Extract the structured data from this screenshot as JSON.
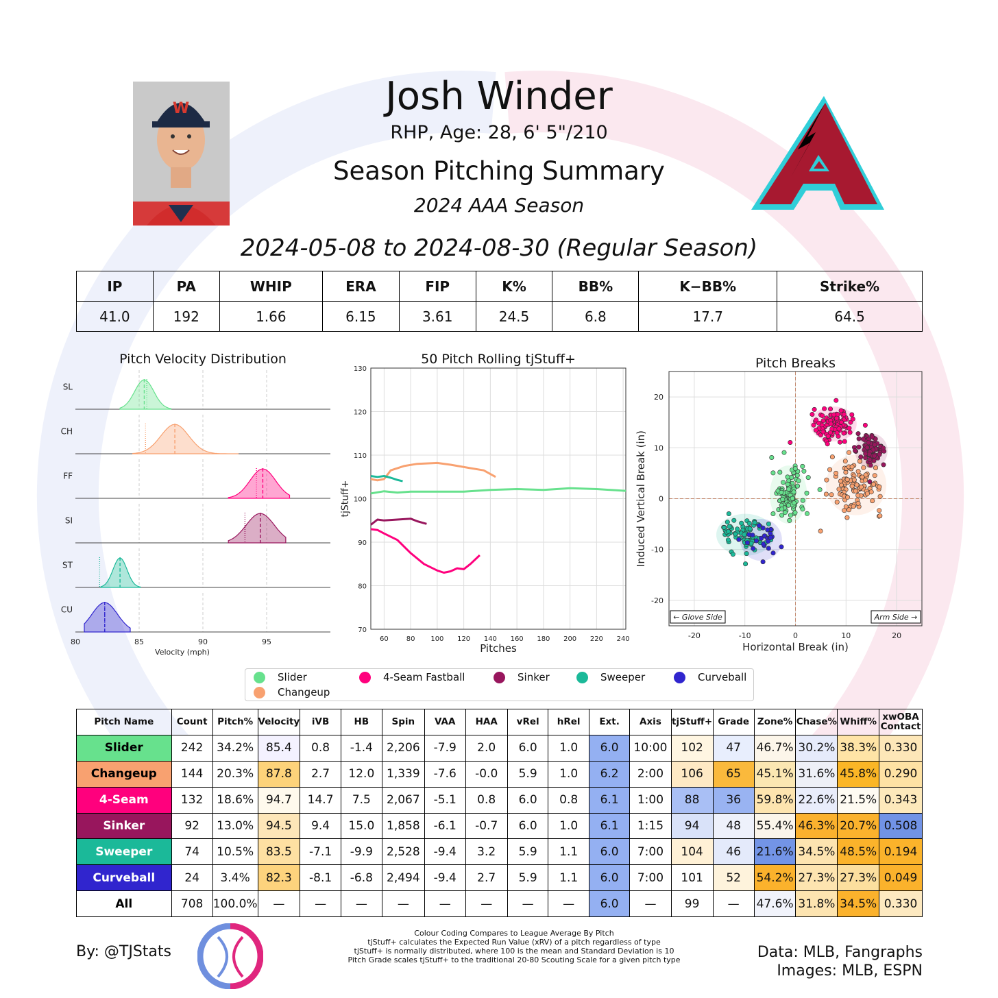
{
  "header": {
    "player_name": "Josh Winder",
    "bio": "RHP, Age: 28, 6' 5\"/210",
    "title": "Season Pitching Summary",
    "season": "2024 AAA Season",
    "date_range": "2024-05-08 to 2024-08-30 (Regular Season)"
  },
  "stat_summary": {
    "headers": [
      "IP",
      "PA",
      "WHIP",
      "ERA",
      "FIP",
      "K%",
      "BB%",
      "K−BB%",
      "Strike%"
    ],
    "values": [
      "41.0",
      "192",
      "1.66",
      "6.15",
      "3.61",
      "24.5",
      "6.8",
      "17.7",
      "64.5"
    ]
  },
  "colors": {
    "Slider": "#67e18d",
    "Changeup": "#f8a170",
    "4-Seam": "#ff007d",
    "Sinker": "#98165d",
    "Sweeper": "#1bb999",
    "Curveball": "#3025ce"
  },
  "legend": {
    "items": [
      {
        "label": "Slider",
        "color": "#67e18d"
      },
      {
        "label": "4-Seam Fastball",
        "color": "#ff007d"
      },
      {
        "label": "Sinker",
        "color": "#98165d"
      },
      {
        "label": "Sweeper",
        "color": "#1bb999"
      },
      {
        "label": "Curveball",
        "color": "#3025ce"
      },
      {
        "label": "Changeup",
        "color": "#f8a170"
      }
    ]
  },
  "chart_data": [
    {
      "type": "area",
      "title": "Pitch Velocity Distribution",
      "xlabel": "Velocity (mph)",
      "xlim": [
        80,
        100
      ],
      "xticks": [
        80,
        85,
        90,
        95
      ],
      "series": [
        {
          "name": "SL",
          "color": "#67e18d",
          "mean": 85.4,
          "league_avg": 85.6,
          "sd": 0.75,
          "range": [
            83.5,
            87.5
          ]
        },
        {
          "name": "CH",
          "color": "#f8a170",
          "mean": 87.8,
          "league_avg": 85.5,
          "sd": 1.1,
          "range": [
            84.5,
            92.8
          ]
        },
        {
          "name": "FF",
          "color": "#ff007d",
          "mean": 94.7,
          "league_avg": 94.2,
          "sd": 1.0,
          "range": [
            92.0,
            96.8
          ]
        },
        {
          "name": "SI",
          "color": "#98165d",
          "mean": 94.5,
          "league_avg": 93.3,
          "sd": 1.1,
          "range": [
            92.0,
            96.5
          ]
        },
        {
          "name": "ST",
          "color": "#1bb999",
          "mean": 83.5,
          "league_avg": 81.9,
          "sd": 0.55,
          "range": [
            82.0,
            85.1
          ]
        },
        {
          "name": "CU",
          "color": "#3025ce",
          "mean": 82.3,
          "league_avg": 82.3,
          "sd": 1.0,
          "range": [
            80.7,
            84.3
          ]
        }
      ]
    },
    {
      "type": "line",
      "title": "50 Pitch Rolling tjStuff+",
      "xlabel": "Pitches",
      "ylabel": "tjStuff+",
      "xlim": [
        50,
        242
      ],
      "ylim": [
        70,
        130
      ],
      "xticks": [
        60,
        80,
        100,
        120,
        140,
        160,
        180,
        200,
        220,
        240
      ],
      "yticks": [
        70,
        80,
        90,
        100,
        110,
        120,
        130
      ],
      "series": [
        {
          "name": "Slider",
          "color": "#67e18d",
          "x": [
            50,
            60,
            70,
            80,
            100,
            120,
            140,
            160,
            180,
            200,
            220,
            242
          ],
          "y": [
            101.2,
            101.7,
            101.4,
            101.6,
            101.6,
            101.6,
            102.0,
            102.2,
            102.0,
            102.4,
            102.2,
            101.8
          ]
        },
        {
          "name": "Changeup",
          "color": "#f8a170",
          "x": [
            50,
            55,
            60,
            65,
            75,
            85,
            100,
            110,
            125,
            135,
            144
          ],
          "y": [
            104.5,
            104.2,
            104.5,
            106.5,
            107.5,
            108.0,
            108.2,
            107.8,
            107.0,
            106.5,
            105.0
          ]
        },
        {
          "name": "Sweeper",
          "color": "#1bb999",
          "x": [
            50,
            55,
            60,
            65,
            70,
            74
          ],
          "y": [
            105.2,
            105.0,
            105.2,
            104.8,
            104.3,
            104.0
          ]
        },
        {
          "name": "Sinker",
          "color": "#98165d",
          "x": [
            50,
            55,
            60,
            70,
            80,
            85,
            92
          ],
          "y": [
            94.0,
            95.2,
            95.0,
            95.2,
            95.4,
            94.8,
            94.2
          ]
        },
        {
          "name": "4-Seam",
          "color": "#ff007d",
          "x": [
            50,
            55,
            60,
            70,
            80,
            90,
            100,
            105,
            110,
            115,
            120,
            125,
            132
          ],
          "y": [
            93.0,
            92.8,
            92.0,
            90.5,
            87.5,
            85.0,
            83.5,
            83.0,
            83.3,
            84.0,
            83.8,
            85.0,
            87.0
          ]
        }
      ]
    },
    {
      "type": "scatter",
      "title": "Pitch Breaks",
      "xlabel": "Horizontal Break (in)",
      "ylabel": "Induced Vertical Break (in)",
      "xlim": [
        -25,
        25
      ],
      "ylim": [
        -25,
        25
      ],
      "xticks": [
        -20,
        -10,
        0,
        10,
        20
      ],
      "yticks": [
        -20,
        -10,
        0,
        10,
        20
      ],
      "annotations": [
        "← Glove Side",
        "Arm Side →"
      ],
      "clusters": [
        {
          "name": "Slider",
          "color": "#67e18d",
          "center": [
            -1.4,
            0.8
          ],
          "spread": [
            1.6,
            2.5
          ],
          "n": 242
        },
        {
          "name": "Changeup",
          "color": "#f8a170",
          "center": [
            12.0,
            2.7
          ],
          "spread": [
            2.6,
            2.6
          ],
          "n": 144
        },
        {
          "name": "4-Seam",
          "color": "#ff007d",
          "center": [
            7.5,
            14.7
          ],
          "spread": [
            2.0,
            1.5
          ],
          "n": 132
        },
        {
          "name": "Sinker",
          "color": "#98165d",
          "center": [
            15.0,
            9.4
          ],
          "spread": [
            1.4,
            1.5
          ],
          "n": 92
        },
        {
          "name": "Sweeper",
          "color": "#1bb999",
          "center": [
            -9.9,
            -7.1
          ],
          "spread": [
            2.5,
            1.8
          ],
          "n": 74
        },
        {
          "name": "Curveball",
          "color": "#3025ce",
          "center": [
            -6.8,
            -8.1
          ],
          "spread": [
            1.8,
            1.8
          ],
          "n": 24
        }
      ]
    }
  ],
  "pitch_table": {
    "headers": [
      "Pitch Name",
      "Count",
      "Pitch%",
      "Velocity",
      "iVB",
      "HB",
      "Spin",
      "VAA",
      "HAA",
      "vRel",
      "hRel",
      "Ext.",
      "Axis",
      "tjStuff+",
      "Grade",
      "Zone%",
      "Chase%",
      "Whiff%",
      "xwOBA\nContact"
    ],
    "rows": [
      {
        "name": "Slider",
        "bg": "#67e18d",
        "fg": "#000",
        "cells": [
          "242",
          "34.2%",
          "85.4",
          "0.8",
          "-1.4",
          "2,206",
          "-7.9",
          "2.0",
          "6.0",
          "1.0",
          "6.0",
          "10:00",
          "102",
          "47",
          "46.7%",
          "30.2%",
          "38.3%",
          "0.330"
        ],
        "shade": [
          "#ffffff",
          "#ffffff",
          "#f4f2ff",
          "#ffffff",
          "#ffffff",
          "#ffffff",
          "#ffffff",
          "#ffffff",
          "#ffffff",
          "#ffffff",
          "#94b0f2",
          "#ffffff",
          "#fff6e2",
          "#e8eefd",
          "#fcf6ea",
          "#e6ebfb",
          "#ffe4a6",
          "#fde7b8"
        ]
      },
      {
        "name": "Changeup",
        "bg": "#f8a170",
        "fg": "#000",
        "cells": [
          "144",
          "20.3%",
          "87.8",
          "2.7",
          "12.0",
          "1,339",
          "-7.6",
          "-0.0",
          "5.9",
          "1.0",
          "6.2",
          "2:00",
          "106",
          "65",
          "45.1%",
          "31.6%",
          "45.8%",
          "0.290"
        ],
        "shade": [
          "#ffffff",
          "#ffffff",
          "#fdd37a",
          "#ffffff",
          "#ffffff",
          "#ffffff",
          "#ffffff",
          "#ffffff",
          "#ffffff",
          "#ffffff",
          "#94b0f2",
          "#ffffff",
          "#fee9c4",
          "#fab93c",
          "#fbe7b2",
          "#eef0f7",
          "#fbb626",
          "#fee2a4"
        ]
      },
      {
        "name": "4-Seam",
        "bg": "#ff007d",
        "fg": "#fff",
        "cells": [
          "132",
          "18.6%",
          "94.7",
          "14.7",
          "7.5",
          "2,067",
          "-5.1",
          "0.8",
          "6.0",
          "0.8",
          "6.1",
          "1:00",
          "88",
          "36",
          "59.8%",
          "22.6%",
          "21.5%",
          "0.343"
        ],
        "shade": [
          "#ffffff",
          "#ffffff",
          "#fffaed",
          "#ffffff",
          "#ffffff",
          "#ffffff",
          "#ffffff",
          "#ffffff",
          "#ffffff",
          "#ffffff",
          "#94b0f2",
          "#ffffff",
          "#a9bff5",
          "#99b3f2",
          "#fde4af",
          "#e9edfb",
          "#fefbf2",
          "#fde9bb"
        ]
      },
      {
        "name": "Sinker",
        "bg": "#98165d",
        "fg": "#fff",
        "cells": [
          "92",
          "13.0%",
          "94.5",
          "9.4",
          "15.0",
          "1,858",
          "-6.1",
          "-0.7",
          "6.0",
          "1.0",
          "6.1",
          "1:15",
          "94",
          "48",
          "55.4%",
          "46.3%",
          "20.7%",
          "0.508"
        ],
        "shade": [
          "#ffffff",
          "#ffffff",
          "#fde6b8",
          "#ffffff",
          "#ffffff",
          "#ffffff",
          "#ffffff",
          "#ffffff",
          "#ffffff",
          "#ffffff",
          "#94b0f2",
          "#ffffff",
          "#d9e2f9",
          "#eef1fb",
          "#fbf5ea",
          "#fbb12e",
          "#fbb22d",
          "#7193e6"
        ]
      },
      {
        "name": "Sweeper",
        "bg": "#1bb999",
        "fg": "#fff",
        "cells": [
          "74",
          "10.5%",
          "83.5",
          "-7.1",
          "-9.9",
          "2,528",
          "-9.4",
          "3.2",
          "5.9",
          "1.1",
          "6.0",
          "7:00",
          "104",
          "46",
          "21.6%",
          "34.5%",
          "48.5%",
          "0.194"
        ],
        "shade": [
          "#ffffff",
          "#ffffff",
          "#fee0a2",
          "#ffffff",
          "#ffffff",
          "#ffffff",
          "#ffffff",
          "#ffffff",
          "#ffffff",
          "#ffffff",
          "#94b0f2",
          "#ffffff",
          "#fff1d6",
          "#e4eafb",
          "#7394e6",
          "#fde4b0",
          "#fbb32b",
          "#fbb32b"
        ]
      },
      {
        "name": "Curveball",
        "bg": "#3025ce",
        "fg": "#fff",
        "cells": [
          "24",
          "3.4%",
          "82.3",
          "-8.1",
          "-6.8",
          "2,494",
          "-9.4",
          "2.7",
          "5.9",
          "1.1",
          "6.0",
          "7:00",
          "101",
          "52",
          "54.2%",
          "27.3%",
          "27.3%",
          "0.049"
        ],
        "shade": [
          "#ffffff",
          "#ffffff",
          "#fdd37d",
          "#ffffff",
          "#ffffff",
          "#ffffff",
          "#ffffff",
          "#ffffff",
          "#ffffff",
          "#ffffff",
          "#94b0f2",
          "#ffffff",
          "#ffffff",
          "#fef3dc",
          "#fbb22c",
          "#fde4b0",
          "#fcdf9e",
          "#fbb22c"
        ]
      },
      {
        "name": "All",
        "bg": "#ffffff",
        "fg": "#000",
        "cells": [
          "708",
          "100.0%",
          "—",
          "—",
          "—",
          "—",
          "—",
          "—",
          "—",
          "—",
          "6.0",
          "—",
          "99",
          "—",
          "47.6%",
          "31.8%",
          "34.5%",
          "0.330"
        ],
        "shade": [
          "#ffffff",
          "#ffffff",
          "#ffffff",
          "#ffffff",
          "#ffffff",
          "#ffffff",
          "#ffffff",
          "#ffffff",
          "#ffffff",
          "#ffffff",
          "#94b0f2",
          "#ffffff",
          "#ffffff",
          "#ffffff",
          "#f1f3fb",
          "#fde4b0",
          "#fbb22c",
          "#fde9c0"
        ]
      }
    ]
  },
  "footer": {
    "by": "By: @TJStats",
    "notes": [
      "Colour Coding Compares to League Average By Pitch",
      "tjStuff+ calculates the Expected Run Value (xRV) of a pitch regardless of type",
      "tjStuff+ is normally distributed, where 100 is the mean and Standard Deviation is 10",
      "Pitch Grade scales tjStuff+ to the traditional 20-80 Scouting Scale for a given pitch type"
    ],
    "data_credit": "Data: MLB, Fangraphs",
    "images_credit": "Images: MLB, ESPN"
  }
}
